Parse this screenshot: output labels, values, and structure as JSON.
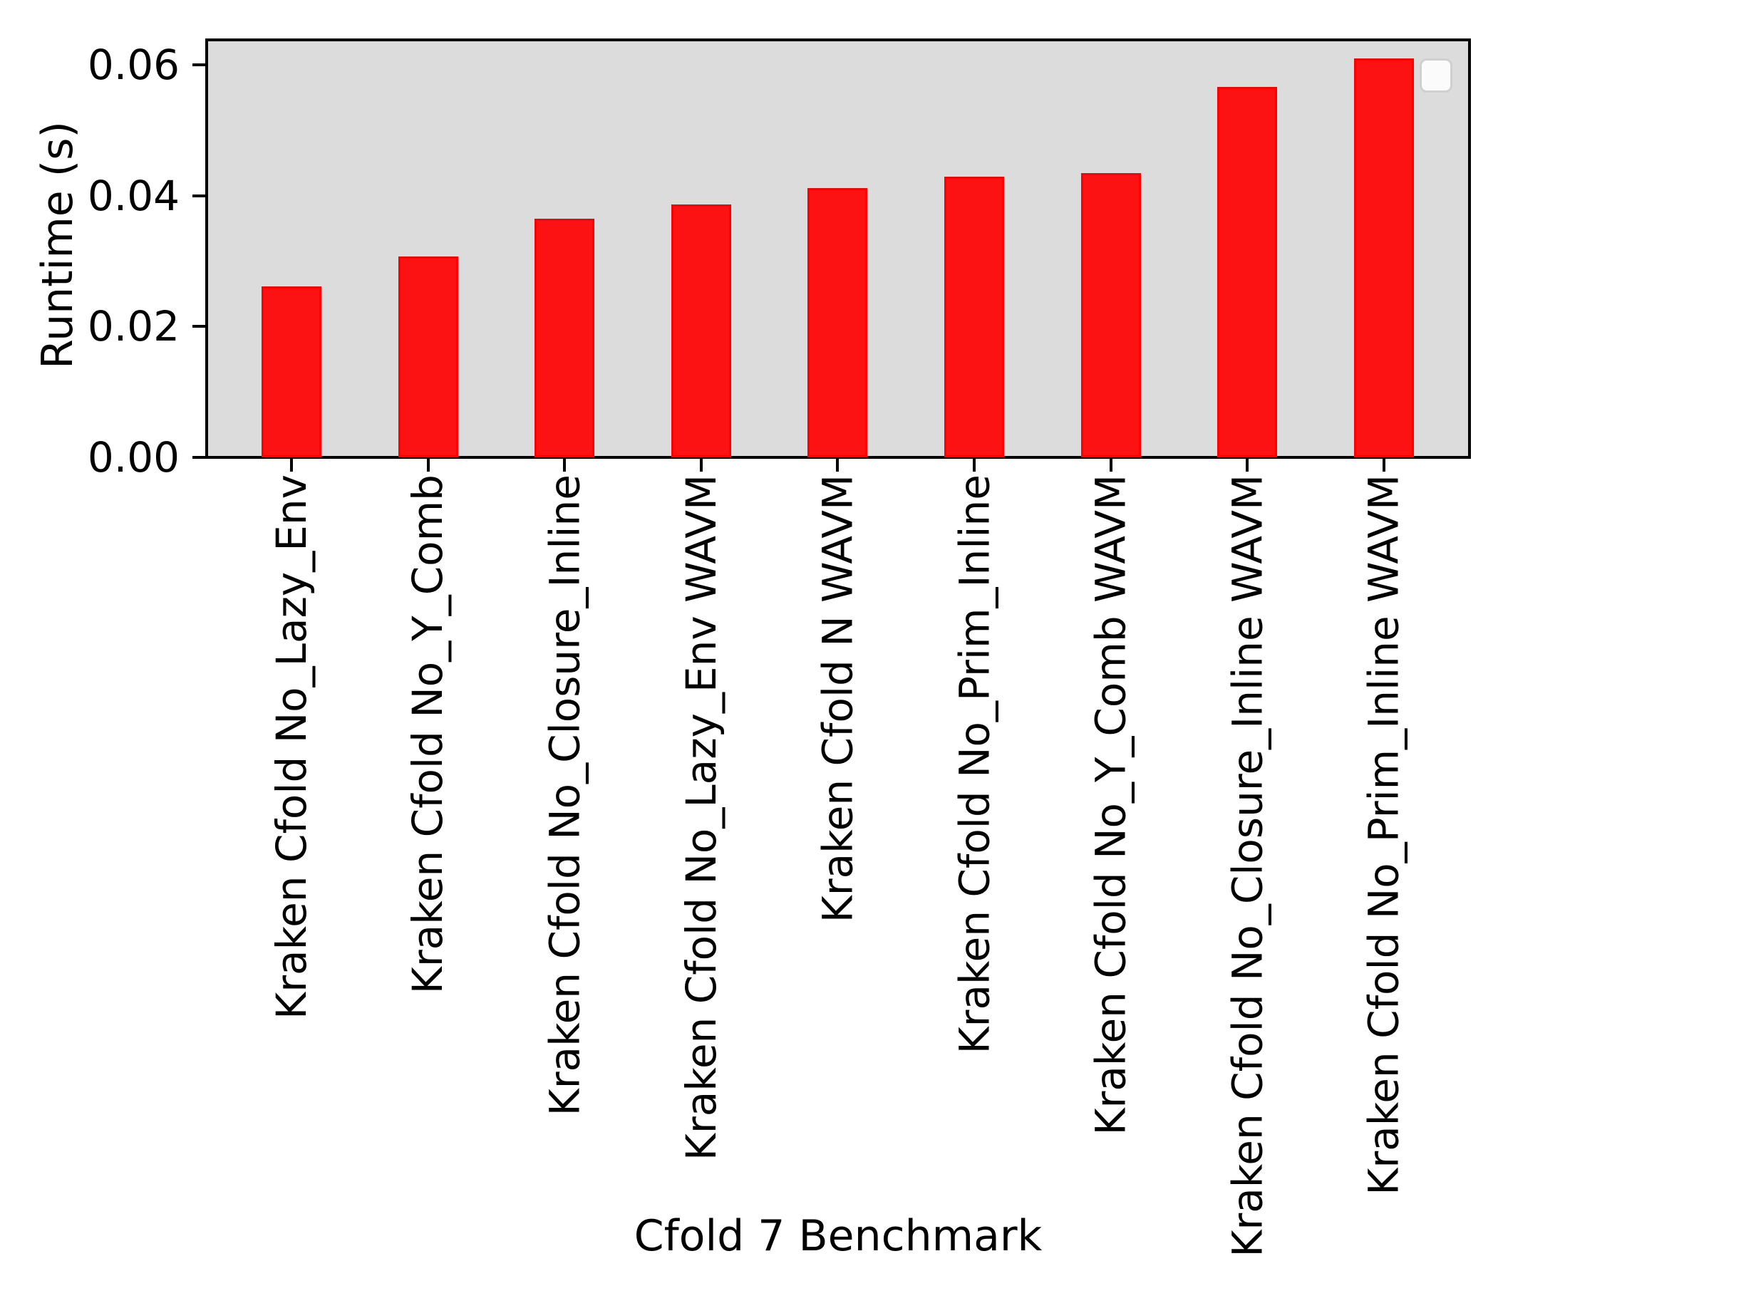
{
  "chart_data": {
    "type": "bar",
    "title": "",
    "xlabel": "Cfold 7 Benchmark",
    "ylabel": "Runtime (s)",
    "categories": [
      "Kraken Cfold No_Lazy_Env",
      "Kraken Cfold No_Y_Comb",
      "Kraken Cfold No_Closure_Inline",
      "Kraken Cfold No_Lazy_Env WAVM",
      "Kraken Cfold N WAVM",
      "Kraken Cfold No_Prim_Inline",
      "Kraken Cfold No_Y_Comb WAVM",
      "Kraken Cfold No_Closure_Inline WAVM",
      "Kraken Cfold No_Prim_Inline WAVM"
    ],
    "values": [
      0.0261,
      0.0307,
      0.0365,
      0.0387,
      0.0412,
      0.0429,
      0.0434,
      0.0566,
      0.061
    ],
    "yticks": [
      0.0,
      0.02,
      0.04,
      0.06
    ],
    "ytick_labels": [
      "0.00",
      "0.02",
      "0.04",
      "0.06"
    ],
    "ylim": [
      0,
      0.0638
    ],
    "grid": false,
    "legend": {
      "visible": true,
      "entries": []
    },
    "colors": {
      "bar_edge": "#ff0000",
      "bar_fill": "#fc1212",
      "plot_background": "#dcdcdc",
      "figure_background": "#ffffff",
      "axis": "#000000",
      "text": "#000000",
      "legend_fill": "#fbfbfb",
      "legend_border": "#d0d0d0"
    }
  }
}
